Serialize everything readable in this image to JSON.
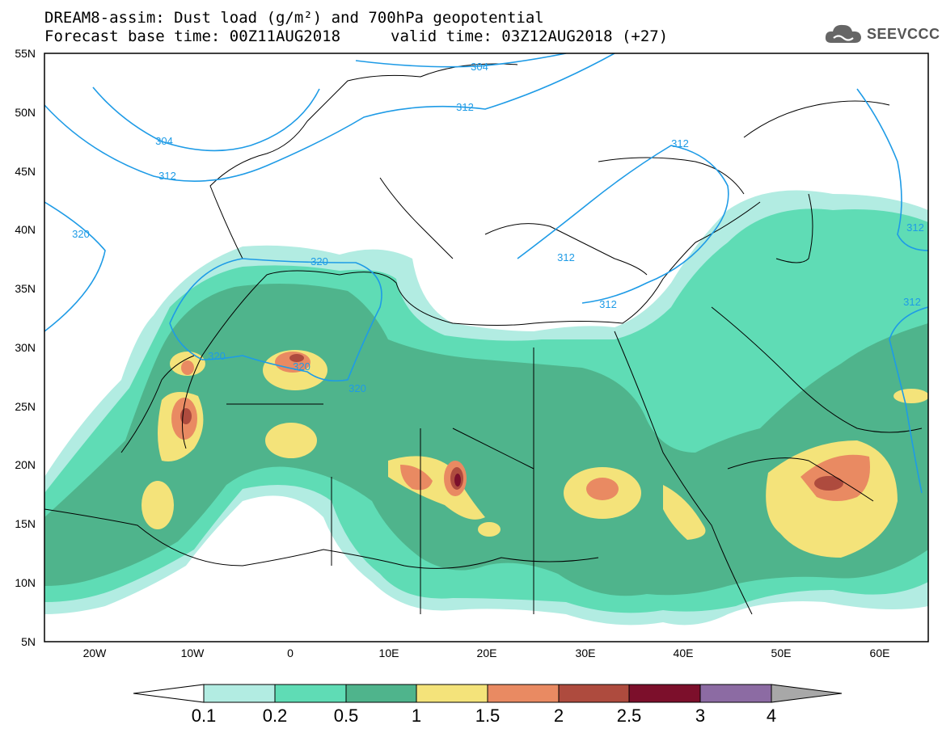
{
  "header": {
    "title_line1": "DREAM8-assim: Dust load (g/m²) and 700hPa geopotential",
    "title_line2": "Forecast base time: 00Z11AUG2018",
    "valid_time": "valid time: 03Z12AUG2018 (+27)",
    "logo_text": "SEEVCCC"
  },
  "map": {
    "lon_ticks": [
      "20W",
      "10W",
      "0",
      "10E",
      "20E",
      "30E",
      "40E",
      "50E",
      "60E"
    ],
    "lat_ticks": [
      "55N",
      "50N",
      "45N",
      "40N",
      "35N",
      "30N",
      "25N",
      "20N",
      "15N",
      "10N",
      "5N"
    ],
    "contour_labels": [
      "304",
      "312",
      "320",
      "304",
      "312",
      "312",
      "320",
      "320",
      "320",
      "320",
      "312",
      "312",
      "312",
      "312"
    ],
    "contour_color": "#1e9be6"
  },
  "colorbar": {
    "labels": [
      "0.1",
      "0.2",
      "0.5",
      "1",
      "1.5",
      "2",
      "2.5",
      "3",
      "4"
    ],
    "colors": [
      "#ffffff",
      "#b2ece2",
      "#5fdcb5",
      "#4fb48c",
      "#f4e37a",
      "#e98a62",
      "#ae4b3e",
      "#7c0f2b",
      "#8c6ba3",
      "#a8a8a8"
    ]
  }
}
